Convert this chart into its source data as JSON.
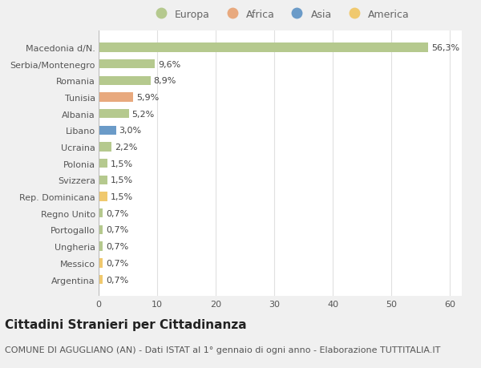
{
  "title": "Cittadini Stranieri per Cittadinanza",
  "subtitle": "COMUNE DI AGUGLIANO (AN) - Dati ISTAT al 1° gennaio di ogni anno - Elaborazione TUTTITALIA.IT",
  "categories": [
    "Macedonia d/N.",
    "Serbia/Montenegro",
    "Romania",
    "Tunisia",
    "Albania",
    "Libano",
    "Ucraina",
    "Polonia",
    "Svizzera",
    "Rep. Dominicana",
    "Regno Unito",
    "Portogallo",
    "Ungheria",
    "Messico",
    "Argentina"
  ],
  "values": [
    56.3,
    9.6,
    8.9,
    5.9,
    5.2,
    3.0,
    2.2,
    1.5,
    1.5,
    1.5,
    0.7,
    0.7,
    0.7,
    0.7,
    0.7
  ],
  "labels": [
    "56,3%",
    "9,6%",
    "8,9%",
    "5,9%",
    "5,2%",
    "3,0%",
    "2,2%",
    "1,5%",
    "1,5%",
    "1,5%",
    "0,7%",
    "0,7%",
    "0,7%",
    "0,7%",
    "0,7%"
  ],
  "continents": [
    "Europa",
    "Europa",
    "Europa",
    "Africa",
    "Europa",
    "Asia",
    "Europa",
    "Europa",
    "Europa",
    "America",
    "Europa",
    "Europa",
    "Europa",
    "America",
    "America"
  ],
  "continent_colors": {
    "Europa": "#b5c98e",
    "Africa": "#e8a97e",
    "Asia": "#6b9bc8",
    "America": "#f0c96e"
  },
  "legend_order": [
    "Europa",
    "Africa",
    "Asia",
    "America"
  ],
  "xlim": [
    0,
    62
  ],
  "background_color": "#f0f0f0",
  "plot_bg_color": "#ffffff",
  "grid_color": "#e0e0e0",
  "bar_height": 0.55,
  "title_fontsize": 11,
  "subtitle_fontsize": 8,
  "tick_fontsize": 8,
  "label_fontsize": 8,
  "legend_fontsize": 9
}
